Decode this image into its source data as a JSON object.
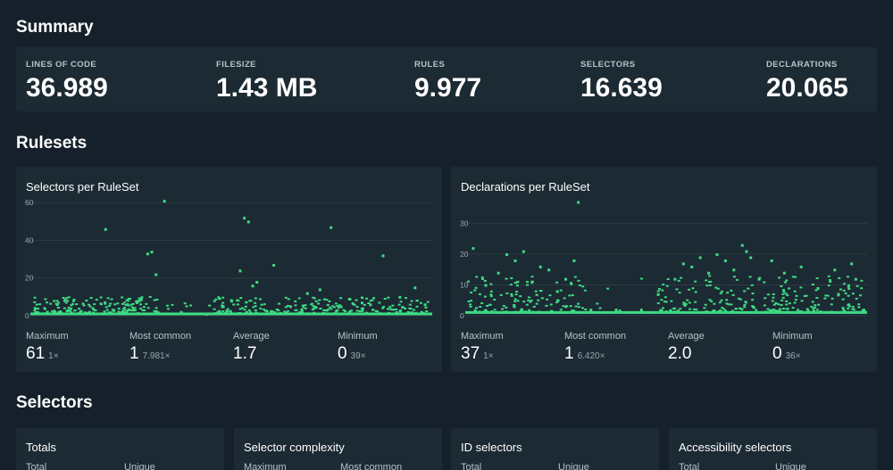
{
  "summary": {
    "title": "Summary",
    "stats": [
      {
        "label": "LINES OF CODE",
        "value": "36.989"
      },
      {
        "label": "FILESIZE",
        "value": "1.43 MB"
      },
      {
        "label": "RULES",
        "value": "9.977"
      },
      {
        "label": "SELECTORS",
        "value": "16.639"
      },
      {
        "label": "DECLARATIONS",
        "value": "20.065"
      }
    ]
  },
  "rulesets": {
    "title": "Rulesets",
    "charts": [
      {
        "title": "Selectors per RuleSet",
        "metrics": [
          {
            "label": "Maximum",
            "value": "61",
            "count": "1×"
          },
          {
            "label": "Most common",
            "value": "1",
            "count": "7.981×"
          },
          {
            "label": "Average",
            "value": "1.7",
            "count": ""
          },
          {
            "label": "Minimum",
            "value": "0",
            "count": "39×"
          }
        ]
      },
      {
        "title": "Declarations per RuleSet",
        "metrics": [
          {
            "label": "Maximum",
            "value": "37",
            "count": "1×"
          },
          {
            "label": "Most common",
            "value": "1",
            "count": "6.420×"
          },
          {
            "label": "Average",
            "value": "2.0",
            "count": ""
          },
          {
            "label": "Minimum",
            "value": "0",
            "count": "36×"
          }
        ]
      }
    ]
  },
  "chart_data": [
    {
      "type": "scatter",
      "title": "Selectors per RuleSet",
      "yticks": [
        "0",
        "20",
        "40",
        "60"
      ],
      "ylim": [
        0,
        62
      ],
      "x": [
        30,
        45,
        60,
        75,
        90,
        100,
        115,
        130,
        140,
        145,
        150,
        160,
        180,
        210,
        230,
        240,
        250,
        255,
        260,
        265,
        270,
        290,
        310,
        330,
        345,
        358,
        370,
        380,
        395,
        405,
        420,
        440,
        458,
        470
      ],
      "y": [
        2,
        3,
        2,
        4,
        46,
        3,
        2,
        8,
        33,
        34,
        22,
        61,
        2,
        1,
        5,
        8,
        24,
        52,
        50,
        16,
        18,
        27,
        5,
        12,
        14,
        47,
        5,
        9,
        7,
        6,
        32,
        10,
        15,
        6
      ]
    },
    {
      "type": "scatter",
      "title": "Declarations per RuleSet",
      "yticks": [
        "0",
        "10",
        "20",
        "30"
      ],
      "ylim": [
        0,
        38
      ],
      "x": [
        10,
        25,
        40,
        50,
        60,
        70,
        80,
        90,
        100,
        110,
        120,
        130,
        135,
        150,
        180,
        210,
        230,
        250,
        260,
        270,
        280,
        290,
        300,
        310,
        320,
        330,
        335,
        340,
        350,
        365,
        380,
        400,
        420,
        440,
        460,
        465
      ],
      "y": [
        22,
        10,
        14,
        20,
        18,
        21,
        11,
        16,
        15,
        8,
        12,
        18,
        37,
        2,
        2,
        2,
        7,
        12,
        17,
        16,
        19,
        14,
        20,
        18,
        15,
        23,
        21,
        19,
        12,
        18,
        14,
        16,
        9,
        15,
        17,
        12
      ]
    }
  ],
  "selectors": {
    "title": "Selectors",
    "cards": [
      {
        "title": "Totals",
        "sub_a": "Total",
        "sub_b": "Unique"
      },
      {
        "title": "Selector complexity",
        "sub_a": "Maximum",
        "sub_b": "Most common"
      },
      {
        "title": "ID selectors",
        "sub_a": "Total",
        "sub_b": "Unique"
      },
      {
        "title": "Accessibility selectors",
        "sub_a": "Total",
        "sub_b": "Unique"
      }
    ]
  },
  "colors": {
    "background": "#15202a",
    "card": "#1c2a33",
    "accent": "#3ddc84",
    "grid": "#2c3a44"
  }
}
